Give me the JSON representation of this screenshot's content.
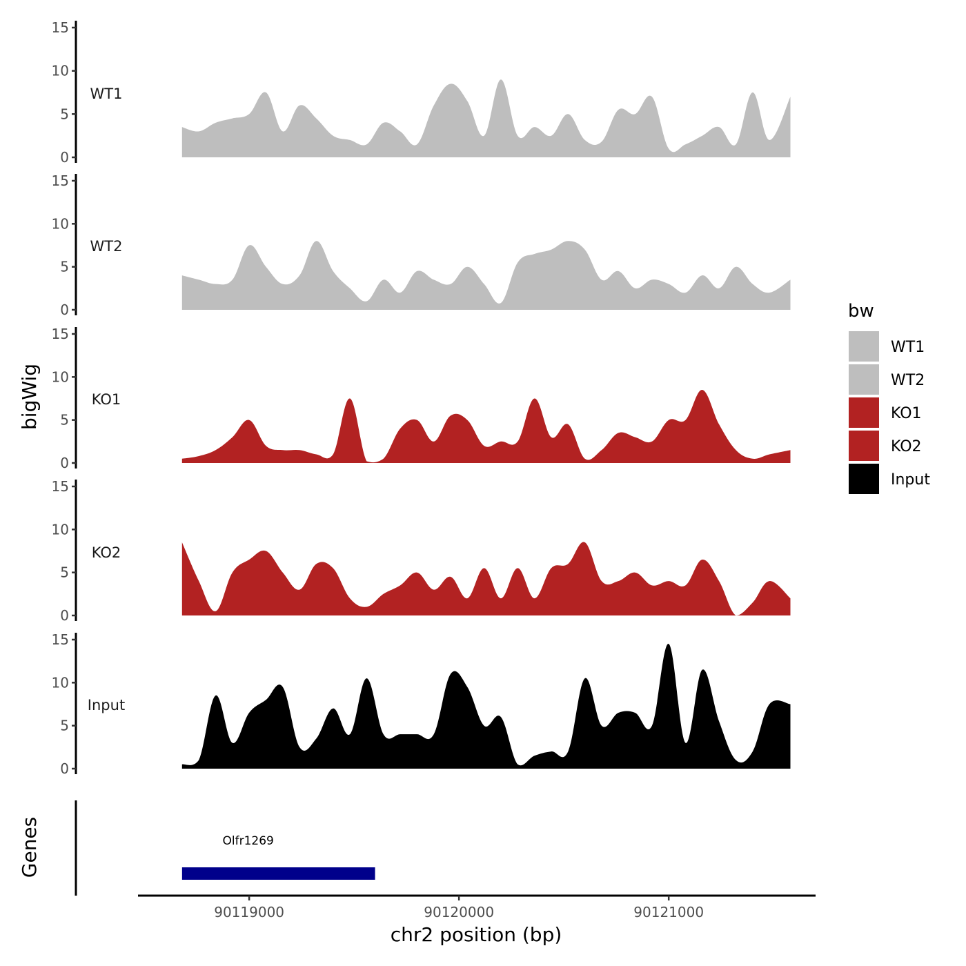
{
  "chart_data": {
    "type": "area",
    "title": "",
    "xlabel": "chr2 position (bp)",
    "ylabel": "bigWig",
    "genes_panel_label": "Genes",
    "xlim": [
      90118470,
      90121700
    ],
    "ylim": [
      0,
      15
    ],
    "y_ticks": [
      0,
      5,
      10,
      15
    ],
    "x_ticks": [
      90119000,
      90120000,
      90121000
    ],
    "x_tick_labels": [
      "90119000",
      "90120000",
      "90121000"
    ],
    "x": [
      90118680,
      90118760,
      90118840,
      90118920,
      90119000,
      90119080,
      90119160,
      90119240,
      90119320,
      90119400,
      90119480,
      90119560,
      90119640,
      90119720,
      90119800,
      90119880,
      90119960,
      90120040,
      90120120,
      90120200,
      90120280,
      90120360,
      90120440,
      90120520,
      90120600,
      90120680,
      90120760,
      90120840,
      90120920,
      90121000,
      90121080,
      90121160,
      90121240,
      90121320,
      90121400,
      90121480,
      90121580
    ],
    "series": [
      {
        "name": "WT1",
        "color": "#BEBEBE",
        "values": [
          3.5,
          3.0,
          4.0,
          4.5,
          5.0,
          7.5,
          3.0,
          6.0,
          4.5,
          2.5,
          2.0,
          1.5,
          4.0,
          3.0,
          1.5,
          6.0,
          8.5,
          6.5,
          2.5,
          9.0,
          2.5,
          3.5,
          2.5,
          5.0,
          2.0,
          1.8,
          5.5,
          5.0,
          7.0,
          1.0,
          1.5,
          2.5,
          3.5,
          1.5,
          7.5,
          2.0,
          7.0
        ]
      },
      {
        "name": "WT2",
        "color": "#BEBEBE",
        "values": [
          4.0,
          3.5,
          3.0,
          3.5,
          7.5,
          5.0,
          3.0,
          4.0,
          8.0,
          4.5,
          2.5,
          1.0,
          3.5,
          2.0,
          4.5,
          3.5,
          3.0,
          5.0,
          3.0,
          0.8,
          5.5,
          6.5,
          7.0,
          8.0,
          7.0,
          3.5,
          4.5,
          2.5,
          3.5,
          3.0,
          2.0,
          4.0,
          2.5,
          5.0,
          3.0,
          2.0,
          3.5
        ]
      },
      {
        "name": "KO1",
        "color": "#B22222",
        "values": [
          0.5,
          0.8,
          1.5,
          3.0,
          5.0,
          2.0,
          1.5,
          1.5,
          1.0,
          1.0,
          7.5,
          0.2,
          0.5,
          4.0,
          5.0,
          2.5,
          5.5,
          5.0,
          2.0,
          2.5,
          2.5,
          7.5,
          3.0,
          4.5,
          0.5,
          1.5,
          3.5,
          3.0,
          2.5,
          5.0,
          5.0,
          8.5,
          4.5,
          1.5,
          0.5,
          1.0,
          1.5
        ]
      },
      {
        "name": "KO2",
        "color": "#B22222",
        "values": [
          8.5,
          4.0,
          0.5,
          5.0,
          6.5,
          7.5,
          5.0,
          3.0,
          6.0,
          5.5,
          2.0,
          1.0,
          2.5,
          3.5,
          5.0,
          3.0,
          4.5,
          2.0,
          5.5,
          2.0,
          5.5,
          2.0,
          5.5,
          6.0,
          8.5,
          4.0,
          4.0,
          5.0,
          3.5,
          4.0,
          3.5,
          6.5,
          4.0,
          0.0,
          1.5,
          4.0,
          2.0
        ]
      },
      {
        "name": "Input",
        "color": "#000000",
        "values": [
          0.5,
          1.0,
          8.5,
          3.0,
          6.5,
          8.0,
          9.5,
          2.5,
          3.5,
          7.0,
          4.0,
          10.5,
          4.0,
          4.0,
          4.0,
          4.0,
          11.0,
          9.5,
          5.0,
          6.0,
          0.5,
          1.5,
          2.0,
          2.0,
          10.5,
          5.0,
          6.5,
          6.5,
          5.0,
          14.5,
          3.0,
          11.5,
          5.5,
          1.0,
          2.0,
          7.5,
          7.5
        ]
      }
    ],
    "genes": [
      {
        "name": "Olfr1269",
        "start": 90118680,
        "end": 90119600,
        "color": "#00008B"
      }
    ],
    "legend": {
      "title": "bw",
      "position": "right",
      "entries": [
        {
          "label": "WT1",
          "color": "#BEBEBE"
        },
        {
          "label": "WT2",
          "color": "#BEBEBE"
        },
        {
          "label": "KO1",
          "color": "#B22222"
        },
        {
          "label": "KO2",
          "color": "#B22222"
        },
        {
          "label": "Input",
          "color": "#000000"
        }
      ]
    }
  }
}
